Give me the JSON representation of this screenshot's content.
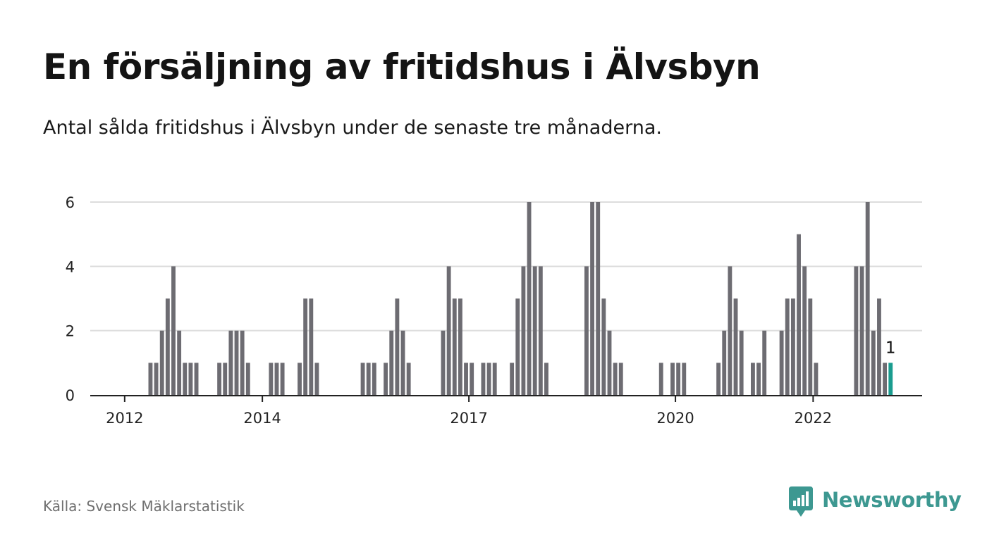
{
  "header": {
    "title": "En försäljning av fritidshus i Älvsbyn",
    "subtitle": "Antal sålda fritidshus i Älvsbyn under de senaste tre månaderna."
  },
  "footer": {
    "source": "Källa: Svensk Mäklarstatistik",
    "brand": "Newsworthy"
  },
  "colors": {
    "bar": "#6d6c72",
    "highlight": "#1a9c8f",
    "grid": "#dddddd",
    "axis": "#222222",
    "brand": "#3d9891"
  },
  "chart_data": {
    "type": "bar",
    "title": "En försäljning av fritidshus i Älvsbyn",
    "subtitle": "Antal sålda fritidshus i Älvsbyn under de senaste tre månaderna.",
    "xlabel": "",
    "ylabel": "",
    "ylim": [
      0,
      6
    ],
    "y_ticks": [
      0,
      2,
      4,
      6
    ],
    "grid": true,
    "x_start": "2011-07",
    "x_end": "2023-08",
    "x_ticks": [
      {
        "date": "2012-01",
        "label": "2012"
      },
      {
        "date": "2014-01",
        "label": "2014"
      },
      {
        "date": "2017-01",
        "label": "2017"
      },
      {
        "date": "2020-01",
        "label": "2020"
      },
      {
        "date": "2022-01",
        "label": "2022"
      }
    ],
    "series": [
      {
        "values": [
          {
            "x": "2012-05",
            "y": 1
          },
          {
            "x": "2012-06",
            "y": 1
          },
          {
            "x": "2012-07",
            "y": 2
          },
          {
            "x": "2012-08",
            "y": 3
          },
          {
            "x": "2012-09",
            "y": 4
          },
          {
            "x": "2012-10",
            "y": 2
          },
          {
            "x": "2012-11",
            "y": 1
          },
          {
            "x": "2012-12",
            "y": 1
          },
          {
            "x": "2013-01",
            "y": 1
          },
          {
            "x": "2013-05",
            "y": 1
          },
          {
            "x": "2013-06",
            "y": 1
          },
          {
            "x": "2013-07",
            "y": 2
          },
          {
            "x": "2013-08",
            "y": 2
          },
          {
            "x": "2013-09",
            "y": 2
          },
          {
            "x": "2013-10",
            "y": 1
          },
          {
            "x": "2014-02",
            "y": 1
          },
          {
            "x": "2014-03",
            "y": 1
          },
          {
            "x": "2014-04",
            "y": 1
          },
          {
            "x": "2014-07",
            "y": 1
          },
          {
            "x": "2014-08",
            "y": 3
          },
          {
            "x": "2014-09",
            "y": 3
          },
          {
            "x": "2014-10",
            "y": 1
          },
          {
            "x": "2015-06",
            "y": 1
          },
          {
            "x": "2015-07",
            "y": 1
          },
          {
            "x": "2015-08",
            "y": 1
          },
          {
            "x": "2015-10",
            "y": 1
          },
          {
            "x": "2015-11",
            "y": 2
          },
          {
            "x": "2015-12",
            "y": 3
          },
          {
            "x": "2016-01",
            "y": 2
          },
          {
            "x": "2016-02",
            "y": 1
          },
          {
            "x": "2016-08",
            "y": 2
          },
          {
            "x": "2016-09",
            "y": 4
          },
          {
            "x": "2016-10",
            "y": 3
          },
          {
            "x": "2016-11",
            "y": 3
          },
          {
            "x": "2016-12",
            "y": 1
          },
          {
            "x": "2017-01",
            "y": 1
          },
          {
            "x": "2017-03",
            "y": 1
          },
          {
            "x": "2017-04",
            "y": 1
          },
          {
            "x": "2017-05",
            "y": 1
          },
          {
            "x": "2017-08",
            "y": 1
          },
          {
            "x": "2017-09",
            "y": 3
          },
          {
            "x": "2017-10",
            "y": 4
          },
          {
            "x": "2017-11",
            "y": 6
          },
          {
            "x": "2017-12",
            "y": 4
          },
          {
            "x": "2018-01",
            "y": 4
          },
          {
            "x": "2018-02",
            "y": 1
          },
          {
            "x": "2018-09",
            "y": 4
          },
          {
            "x": "2018-10",
            "y": 6
          },
          {
            "x": "2018-11",
            "y": 6
          },
          {
            "x": "2018-12",
            "y": 3
          },
          {
            "x": "2019-01",
            "y": 2
          },
          {
            "x": "2019-02",
            "y": 1
          },
          {
            "x": "2019-03",
            "y": 1
          },
          {
            "x": "2019-10",
            "y": 1
          },
          {
            "x": "2019-12",
            "y": 1
          },
          {
            "x": "2020-01",
            "y": 1
          },
          {
            "x": "2020-02",
            "y": 1
          },
          {
            "x": "2020-08",
            "y": 1
          },
          {
            "x": "2020-09",
            "y": 2
          },
          {
            "x": "2020-10",
            "y": 4
          },
          {
            "x": "2020-11",
            "y": 3
          },
          {
            "x": "2020-12",
            "y": 2
          },
          {
            "x": "2021-02",
            "y": 1
          },
          {
            "x": "2021-03",
            "y": 1
          },
          {
            "x": "2021-04",
            "y": 2
          },
          {
            "x": "2021-07",
            "y": 2
          },
          {
            "x": "2021-08",
            "y": 3
          },
          {
            "x": "2021-09",
            "y": 3
          },
          {
            "x": "2021-10",
            "y": 5
          },
          {
            "x": "2021-11",
            "y": 4
          },
          {
            "x": "2021-12",
            "y": 3
          },
          {
            "x": "2022-01",
            "y": 1
          },
          {
            "x": "2022-08",
            "y": 4
          },
          {
            "x": "2022-09",
            "y": 4
          },
          {
            "x": "2022-10",
            "y": 6
          },
          {
            "x": "2022-11",
            "y": 2
          },
          {
            "x": "2022-12",
            "y": 3
          },
          {
            "x": "2023-01",
            "y": 1
          },
          {
            "x": "2023-02",
            "y": 1
          }
        ]
      }
    ],
    "highlight": {
      "x": "2023-02",
      "label": "1"
    }
  }
}
